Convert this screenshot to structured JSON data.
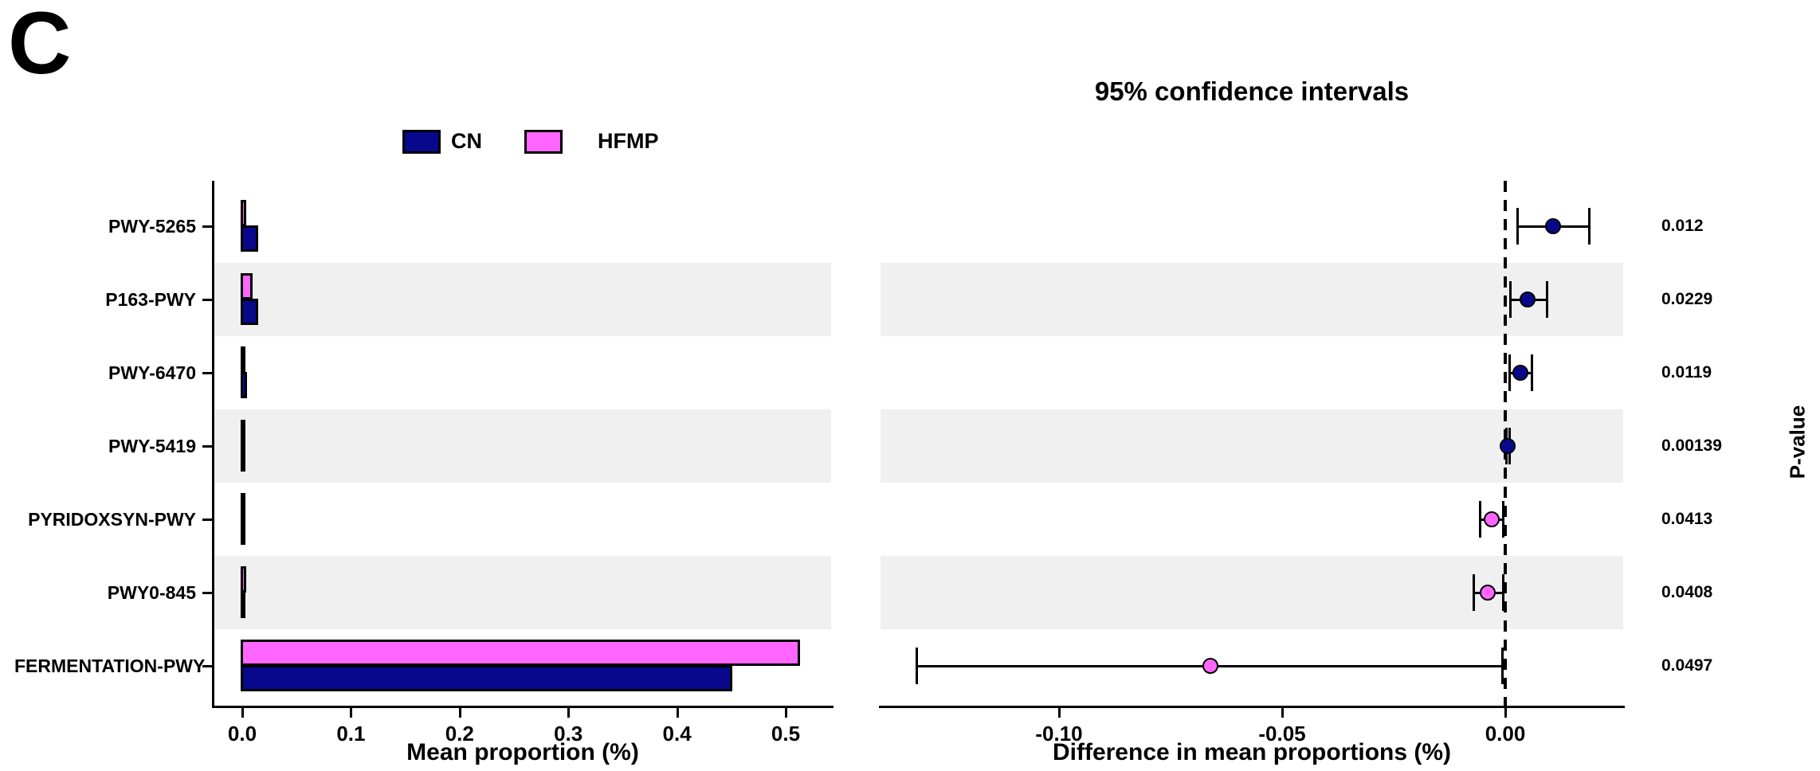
{
  "panel_label": "C",
  "legend": {
    "items": [
      {
        "label": "CN",
        "color": "#08088C"
      },
      {
        "label": "HFMP",
        "color": "#FF66FF"
      }
    ]
  },
  "colors": {
    "cn": "#08088C",
    "hfmp": "#FF66FF",
    "band": "#F0F0F0",
    "line": "#000000"
  },
  "chart_data": [
    {
      "type": "bar",
      "panel": "left",
      "orientation": "horizontal-grouped",
      "xlabel": "Mean proportion (%)",
      "categories": [
        "PWY-5265",
        "P163-PWY",
        "PWY-6470",
        "PWY-5419",
        "PYRIDOXSYN-PWY",
        "PWY0-845",
        "FERMENTATION-PWY"
      ],
      "series": [
        {
          "name": "CN",
          "color": "#08088C",
          "values": [
            0.016,
            0.016,
            0.006,
            0.001,
            0.001,
            0.001,
            0.452
          ]
        },
        {
          "name": "HFMP",
          "color": "#FF66FF",
          "values": [
            0.005,
            0.011,
            0.001,
            0.001,
            0.004,
            0.005,
            0.515
          ]
        }
      ],
      "xlim": [
        0,
        0.54
      ],
      "xticks": [
        0,
        0.1,
        0.2,
        0.3,
        0.4,
        0.5
      ],
      "xtick_labels": [
        "0.0",
        "0.1",
        "0.2",
        "0.3",
        "0.4",
        "0.5"
      ],
      "grid": false,
      "striped_rows": true,
      "legend_position": "top"
    },
    {
      "type": "scatter",
      "panel": "right",
      "title": "95% confidence intervals",
      "xlabel": "Difference in mean proportions (%)",
      "ylabel_right": "P-value",
      "categories": [
        "PWY-5265",
        "P163-PWY",
        "PWY-6470",
        "PWY-5419",
        "PYRIDOXSYN-PWY",
        "PWY0-845",
        "FERMENTATION-PWY"
      ],
      "points": [
        {
          "category": "PWY-5265",
          "x": 0.0107,
          "ci": [
            0.0027,
            0.0189
          ],
          "group": "CN",
          "p_value": "0.012"
        },
        {
          "category": "P163-PWY",
          "x": 0.005,
          "ci": [
            0.0011,
            0.0095
          ],
          "group": "CN",
          "p_value": "0.0229"
        },
        {
          "category": "PWY-6470",
          "x": 0.0034,
          "ci": [
            0.0009,
            0.0061
          ],
          "group": "CN",
          "p_value": "0.0119"
        },
        {
          "category": "PWY-5419",
          "x": 0.0005,
          "ci": [
            0.0001,
            0.0011
          ],
          "group": "CN",
          "p_value": "0.00139"
        },
        {
          "category": "PYRIDOXSYN-PWY",
          "x": -0.003,
          "ci": [
            -0.0057,
            -0.0003
          ],
          "group": "HFMP",
          "p_value": "0.0413"
        },
        {
          "category": "PWY0-845",
          "x": -0.0039,
          "ci": [
            -0.0071,
            -0.0004
          ],
          "group": "HFMP",
          "p_value": "0.0408"
        },
        {
          "category": "FERMENTATION-PWY",
          "x": -0.066,
          "ci": [
            -0.132,
            -0.0005
          ],
          "group": "HFMP",
          "p_value": "0.0497"
        }
      ],
      "xlim": [
        -0.14,
        0.0265
      ],
      "xticks": [
        -0.1,
        -0.05,
        0
      ],
      "xtick_labels": [
        "-0.10",
        "-0.05",
        "0.00"
      ],
      "zero_line_dashed": true,
      "grid": false,
      "striped_rows": true
    }
  ]
}
